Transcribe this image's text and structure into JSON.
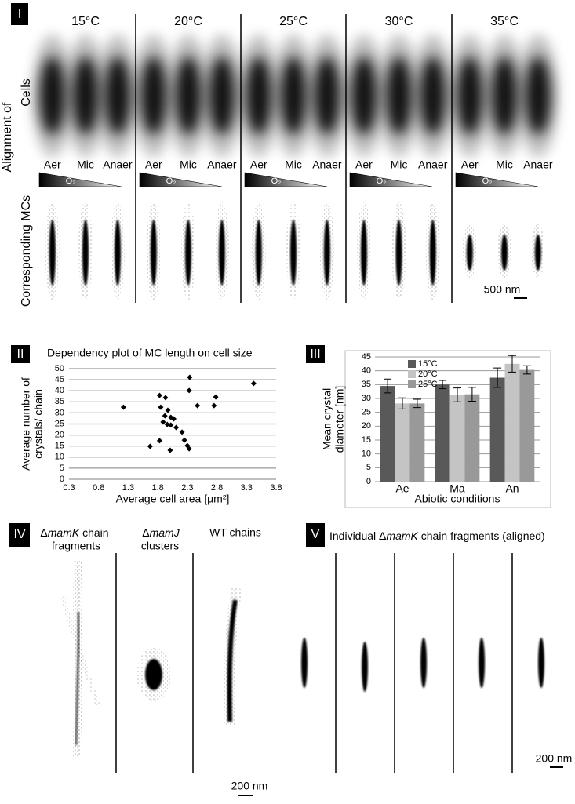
{
  "panel_I": {
    "label": "I",
    "temperatures": [
      "15°C",
      "20°C",
      "25°C",
      "30°C",
      "35°C"
    ],
    "row_title": "Alignment of",
    "row_cells": "Cells",
    "row_mcs": "Corresponding MCs",
    "conditions": [
      "Aer",
      "Mic",
      "Anaer"
    ],
    "gradient_label": "O₂",
    "scale_bar": "500 nm"
  },
  "panel_II": {
    "label": "II"
  },
  "panel_III": {
    "label": "III"
  },
  "panel_IV": {
    "label": "IV",
    "col1_prefix": "Δ",
    "col1_gene": "mamK",
    "col1_rest": " chain",
    "col1_line2": "fragments",
    "col2_prefix": "Δ",
    "col2_gene": "mamJ",
    "col2_line2": "clusters",
    "col3_title": "WT chains",
    "scale_bar": "200 nm"
  },
  "panel_V": {
    "label": "V",
    "title_prefix": "Individual Δ",
    "title_gene": "mamK",
    "title_rest": " chain fragments (aligned)",
    "scale_bar": "200 nm"
  },
  "chart_data": [
    {
      "type": "scatter",
      "title": "Dependency plot of MC length on cell size",
      "xlabel": "Average cell area [μm²]",
      "ylabel": [
        "Average number of",
        "crystals/ chain"
      ],
      "x": [
        1.22,
        1.83,
        1.93,
        2.34,
        3.42,
        2.78,
        2.75,
        2.47,
        2.33,
        1.85,
        1.97,
        2.02,
        1.92,
        2.07,
        1.89,
        2.02,
        1.96,
        2.11,
        2.21,
        1.83,
        2.25,
        1.67,
        2.3,
        2.33,
        2.01
      ],
      "values": [
        32.6,
        37.9,
        36.9,
        46.1,
        43.3,
        37.2,
        33.3,
        33.3,
        40.1,
        32.6,
        31.2,
        28.0,
        28.7,
        27.3,
        25.9,
        24.5,
        24.8,
        23.4,
        21.3,
        17.4,
        17.7,
        14.9,
        15.2,
        13.8,
        13.1
      ],
      "color": "#000000",
      "xlim": [
        0.3,
        3.8
      ],
      "xticks": [
        0.3,
        0.8,
        1.3,
        1.8,
        2.3,
        2.8,
        3.3,
        3.8
      ],
      "ylim": [
        0,
        50
      ],
      "yticks": [
        0,
        5,
        10,
        15,
        20,
        25,
        30,
        35,
        40,
        45,
        50
      ],
      "grid": true
    },
    {
      "type": "bar",
      "ylabel": [
        "Mean crystal",
        "diameter [nm]"
      ],
      "xlabel": "Abiotic conditions",
      "categories": [
        "Ae",
        "Ma",
        "An"
      ],
      "series": [
        {
          "name": "15°C",
          "color": "#595959",
          "values": [
            34.5,
            35.0,
            37.5
          ],
          "errors": [
            2.5,
            1.5,
            3.5
          ]
        },
        {
          "name": "20°C",
          "color": "#c4c4c4",
          "values": [
            28.2,
            31.3,
            42.5
          ],
          "errors": [
            2.0,
            2.5,
            3.0
          ]
        },
        {
          "name": "25°C",
          "color": "#999999",
          "values": [
            28.2,
            31.5,
            40.3
          ],
          "errors": [
            1.5,
            2.5,
            1.5
          ]
        }
      ],
      "ylim": [
        0,
        45
      ],
      "yticks": [
        0,
        5,
        10,
        15,
        20,
        25,
        30,
        35,
        40,
        45
      ],
      "grid": true,
      "legend": "top-left"
    }
  ]
}
